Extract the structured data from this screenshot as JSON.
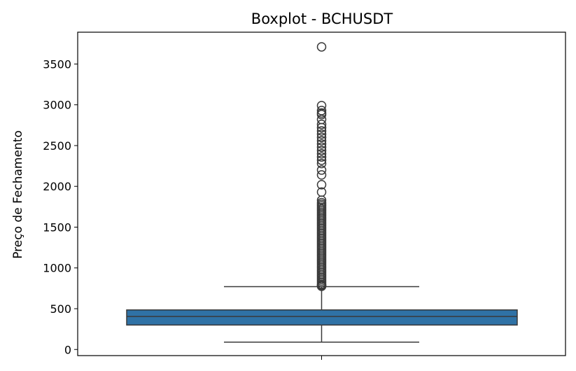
{
  "chart_data": {
    "type": "boxplot",
    "title": "Boxplot - BCHUSDT",
    "xlabel": "",
    "ylabel": "Preço de Fechamento",
    "ylim": [
      -75,
      3890
    ],
    "yticks": [
      0,
      500,
      1000,
      1500,
      2000,
      2500,
      3000,
      3500
    ],
    "grid": false,
    "box_color": "#2f72a6",
    "box": {
      "whisker_low": 90,
      "q1": 300,
      "median": 405,
      "q3": 485,
      "whisker_high": 770
    },
    "outliers": [
      3710,
      2990,
      2930,
      2900,
      2880,
      2820,
      2760,
      2720,
      2680,
      2640,
      2600,
      2560,
      2520,
      2480,
      2440,
      2400,
      2360,
      2320,
      2280,
      2200,
      2140,
      2020,
      1930,
      1830,
      1800,
      1780,
      1760,
      1740,
      1720,
      1700,
      1680,
      1660,
      1640,
      1620,
      1600,
      1580,
      1560,
      1540,
      1520,
      1500,
      1480,
      1460,
      1440,
      1420,
      1400,
      1380,
      1360,
      1340,
      1320,
      1300,
      1280,
      1260,
      1240,
      1220,
      1200,
      1180,
      1160,
      1140,
      1120,
      1100,
      1080,
      1060,
      1040,
      1020,
      1000,
      980,
      960,
      940,
      920,
      900,
      880,
      860,
      840,
      820,
      800,
      790,
      780,
      775
    ]
  }
}
